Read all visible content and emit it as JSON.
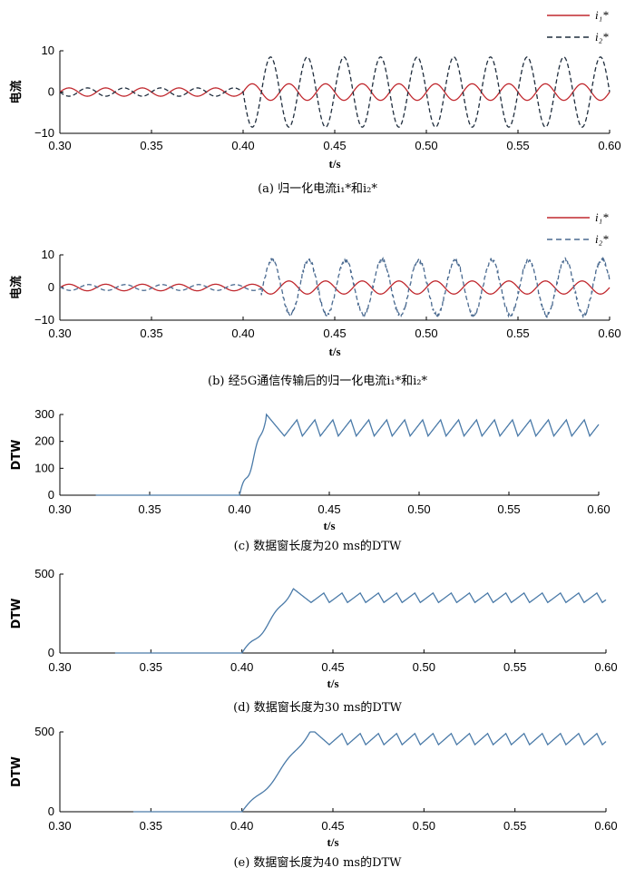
{
  "chart_data": [
    {
      "id": "a",
      "type": "line",
      "ylabel": "电流",
      "xlabel": "t/s",
      "caption": "(a) 归一化电流i₁*和i₂*",
      "xlim": [
        0.3,
        0.6
      ],
      "ylim": [
        -10,
        10
      ],
      "xticks": [
        "0.30",
        "0.35",
        "0.40",
        "0.45",
        "0.50",
        "0.55",
        "0.60"
      ],
      "yticks": [
        "10",
        "0",
        "−10"
      ],
      "series": [
        {
          "name": "i₁*",
          "style": "solid",
          "color": "#c0282e",
          "amp_before": 1,
          "amp_after": 2,
          "freq_hz": 50,
          "phase": 0
        },
        {
          "name": "i₂*",
          "style": "dashed",
          "color": "#1f2d3d",
          "amp_before": 1,
          "amp_after": 8.5,
          "freq_hz": 50,
          "phase": 3.14
        }
      ],
      "event_time": 0.4
    },
    {
      "id": "b",
      "type": "line",
      "ylabel": "电流",
      "xlabel": "t/s",
      "caption": "(b) 经5G通信传输后的归一化电流i₁*和i₂*",
      "xlim": [
        0.3,
        0.6
      ],
      "ylim": [
        -10,
        10
      ],
      "xticks": [
        "0.30",
        "0.35",
        "0.40",
        "0.45",
        "0.50",
        "0.55",
        "0.60"
      ],
      "yticks": [
        "10",
        "0",
        "−10"
      ],
      "series": [
        {
          "name": "i₁*",
          "style": "solid",
          "color": "#c0282e",
          "amp_before": 1,
          "amp_after": 2,
          "freq_hz": 50,
          "phase": 0
        },
        {
          "name": "i₂*",
          "style": "dashed",
          "color": "#4a6a90",
          "amp_before": 0.9,
          "amp_after": 8.5,
          "freq_hz": 50,
          "phase": 2.9
        }
      ],
      "event_time": 0.41
    },
    {
      "id": "c",
      "type": "line",
      "ylabel": "DTW",
      "xlabel": "t/s",
      "caption": "(c) 数据窗长度为20 ms的DTW",
      "xlim": [
        0.3,
        0.6
      ],
      "ylim": [
        0,
        300
      ],
      "xticks": [
        "0.30",
        "0.35",
        "0.40",
        "0.45",
        "0.50",
        "0.55",
        "0.60"
      ],
      "yticks": [
        "300",
        "200",
        "100",
        "0"
      ],
      "series": [
        {
          "name": "DTW",
          "color": "#4a7aa8",
          "start": 0.32,
          "rise_start": 0.4,
          "peak_time": 0.415,
          "peak": 300,
          "base": 220,
          "ripple_top": 280,
          "window_s": 0.02
        }
      ]
    },
    {
      "id": "d",
      "type": "line",
      "ylabel": "DTW",
      "xlabel": "t/s",
      "caption": "(d) 数据窗长度为30 ms的DTW",
      "xlim": [
        0.3,
        0.6
      ],
      "ylim": [
        0,
        500
      ],
      "xticks": [
        "0.30",
        "0.35",
        "0.40",
        "0.45",
        "0.50",
        "0.55",
        "0.60"
      ],
      "yticks": [
        "500",
        "0"
      ],
      "series": [
        {
          "name": "DTW",
          "color": "#4a7aa8",
          "start": 0.33,
          "rise_start": 0.4,
          "peak_time": 0.428,
          "peak": 410,
          "base": 320,
          "ripple_top": 380,
          "window_s": 0.03
        }
      ]
    },
    {
      "id": "e",
      "type": "line",
      "ylabel": "DTW",
      "xlabel": "t/s",
      "caption": "(e) 数据窗长度为40 ms的DTW",
      "xlim": [
        0.3,
        0.6
      ],
      "ylim": [
        0,
        500
      ],
      "xticks": [
        "0.30",
        "0.35",
        "0.40",
        "0.45",
        "0.50",
        "0.55",
        "0.60"
      ],
      "yticks": [
        "500",
        "0"
      ],
      "series": [
        {
          "name": "DTW",
          "color": "#4a7aa8",
          "start": 0.34,
          "rise_start": 0.4,
          "peak_time": 0.438,
          "peak": 520,
          "base": 420,
          "ripple_top": 490,
          "window_s": 0.04
        }
      ]
    }
  ]
}
